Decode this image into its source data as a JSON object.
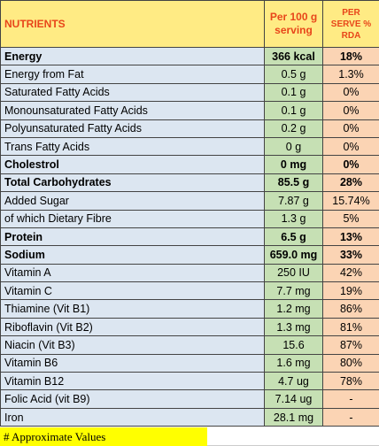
{
  "header": {
    "nutrients_label": "NUTRIENTS",
    "per100_line1": "Per 100 g",
    "per100_line2": "serving",
    "rda_line1": "PER",
    "rda_line2": "SERVE %",
    "rda_line3": "RDA"
  },
  "rows": [
    {
      "name": "Energy",
      "value": "366 kcal",
      "rda": "18%",
      "bold": true
    },
    {
      "name": "Energy from Fat",
      "value": "0.5 g",
      "rda": "1.3%",
      "bold": false
    },
    {
      "name": "Saturated Fatty Acids",
      "value": "0.1 g",
      "rda": "0%",
      "bold": false
    },
    {
      "name": "Monounsaturated Fatty Acids",
      "value": "0.1 g",
      "rda": "0%",
      "bold": false
    },
    {
      "name": "Polyunsaturated Fatty Acids",
      "value": "0.2 g",
      "rda": "0%",
      "bold": false
    },
    {
      "name": "Trans Fatty Acids",
      "value": "0  g",
      "rda": "0%",
      "bold": false
    },
    {
      "name": "Cholestrol",
      "value": "0 mg",
      "rda": "0%",
      "bold": true
    },
    {
      "name": "Total Carbohydrates",
      "value": "85.5 g",
      "rda": "28%",
      "bold": true
    },
    {
      "name": "Added Sugar",
      "value": "7.87 g",
      "rda": "15.74%",
      "bold": false
    },
    {
      "name": "of which Dietary Fibre",
      "value": "1.3 g",
      "rda": "5%",
      "bold": false
    },
    {
      "name": "Protein",
      "value": "6.5 g",
      "rda": "13%",
      "bold": true
    },
    {
      "name": "Sodium",
      "value": "659.0 mg",
      "rda": "33%",
      "bold": true
    },
    {
      "name": "Vitamin A",
      "value": "250 IU",
      "rda": "42%",
      "bold": false
    },
    {
      "name": "Vitamin C",
      "value": "7.7 mg",
      "rda": "19%",
      "bold": false
    },
    {
      "name": "Thiamine (Vit B1)",
      "value": "1.2 mg",
      "rda": "86%",
      "bold": false
    },
    {
      "name": "Riboflavin (Vit B2)",
      "value": "1.3 mg",
      "rda": "81%",
      "bold": false
    },
    {
      "name": "Niacin (Vit B3)",
      "value": "15.6",
      "rda": "87%",
      "bold": false
    },
    {
      "name": "Vitamin B6",
      "value": "1.6 mg",
      "rda": "80%",
      "bold": false
    },
    {
      "name": "Vitamin B12",
      "value": "4.7 ug",
      "rda": "78%",
      "bold": false
    },
    {
      "name": "Folic Acid (vit B9)",
      "value": "7.14 ug",
      "rda": "-",
      "bold": false
    },
    {
      "name": "Iron",
      "value": "28.1 mg",
      "rda": "-",
      "bold": false
    }
  ],
  "footnote": "# Approximate Values",
  "colors": {
    "header_bg": "#ffeb84",
    "header_text": "#e8461a",
    "name_bg": "#dce6f1",
    "value_bg": "#c6e0b4",
    "rda_bg": "#fbd4b4",
    "footnote_bg": "#ffff00"
  }
}
